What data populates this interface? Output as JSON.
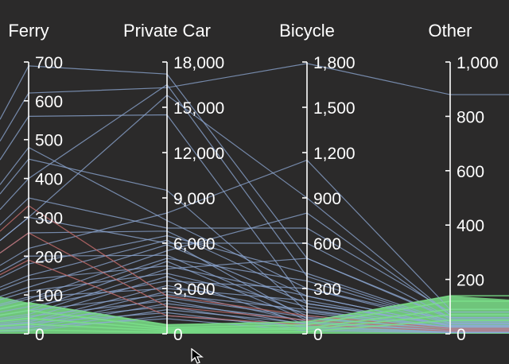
{
  "chart_data": {
    "type": "parallel-coordinates",
    "axes": [
      {
        "name": "Ferry",
        "range": [
          0,
          700
        ],
        "ticks": [
          0,
          100,
          200,
          300,
          400,
          500,
          600,
          700
        ]
      },
      {
        "name": "Private Car",
        "range": [
          0,
          18000
        ],
        "ticks": [
          0,
          3000,
          6000,
          9000,
          12000,
          15000,
          18000
        ]
      },
      {
        "name": "Bicycle",
        "range": [
          0,
          1800
        ],
        "ticks": [
          0,
          300,
          600,
          900,
          1200,
          1500,
          1800
        ]
      },
      {
        "name": "Other",
        "range": [
          0,
          1000
        ],
        "ticks": [
          0,
          200,
          400,
          600,
          800,
          1000
        ]
      }
    ],
    "series": [
      {
        "color": "#8fa9d6",
        "values": [
          [
            620,
            16300,
            1790,
            880
          ],
          [
            690,
            17200,
            500,
            60
          ],
          [
            400,
            16500,
            380,
            40
          ],
          [
            560,
            14500,
            200,
            30
          ],
          [
            300,
            15800,
            900,
            70
          ],
          [
            450,
            9500,
            150,
            25
          ],
          [
            220,
            8000,
            1150,
            90
          ],
          [
            480,
            7500,
            300,
            50
          ],
          [
            350,
            7000,
            700,
            80
          ],
          [
            260,
            6800,
            250,
            30
          ],
          [
            180,
            6500,
            400,
            45
          ],
          [
            150,
            6200,
            100,
            20
          ],
          [
            300,
            6000,
            600,
            60
          ],
          [
            120,
            5900,
            200,
            35
          ],
          [
            90,
            5500,
            800,
            70
          ],
          [
            200,
            5200,
            120,
            25
          ],
          [
            80,
            5000,
            350,
            40
          ],
          [
            60,
            4800,
            90,
            15
          ],
          [
            140,
            4500,
            250,
            30
          ],
          [
            50,
            4300,
            500,
            55
          ],
          [
            110,
            4000,
            180,
            22
          ],
          [
            40,
            3800,
            60,
            12
          ],
          [
            70,
            3500,
            300,
            38
          ],
          [
            30,
            3200,
            140,
            18
          ],
          [
            95,
            3000,
            220,
            28
          ],
          [
            25,
            2800,
            80,
            10
          ],
          [
            60,
            2600,
            160,
            20
          ],
          [
            20,
            2400,
            110,
            14
          ],
          [
            45,
            2200,
            60,
            9
          ],
          [
            15,
            2000,
            90,
            12
          ],
          [
            35,
            1800,
            40,
            7
          ],
          [
            10,
            1600,
            70,
            9
          ],
          [
            28,
            1400,
            30,
            5
          ],
          [
            8,
            1200,
            50,
            6
          ],
          [
            18,
            1000,
            20,
            4
          ]
        ]
      },
      {
        "color": "#c06a6a",
        "values": [
          [
            330,
            2500,
            120,
            20
          ],
          [
            260,
            1800,
            90,
            15
          ],
          [
            190,
            1200,
            60,
            10
          ]
        ]
      },
      {
        "color": "#7be08a",
        "values": [
          [
            80,
            600,
            80,
            140
          ],
          [
            60,
            400,
            60,
            120
          ],
          [
            40,
            300,
            40,
            90
          ],
          [
            25,
            200,
            30,
            70
          ],
          [
            10,
            100,
            15,
            50
          ]
        ]
      }
    ]
  }
}
